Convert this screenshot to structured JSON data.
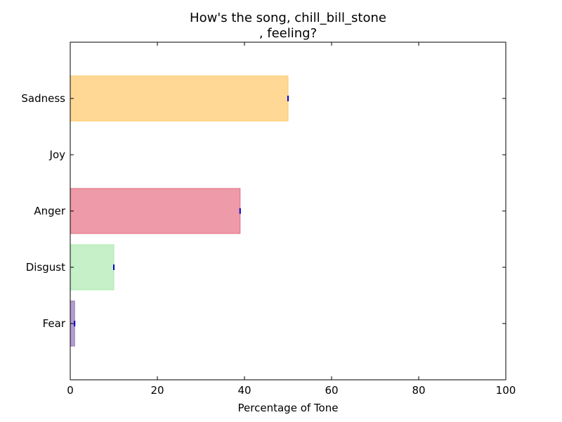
{
  "chart_data": {
    "type": "bar",
    "orientation": "horizontal",
    "title_lines": [
      "How's the song, chill_bill_stone",
      ", feeling?"
    ],
    "xlabel": "Percentage of Tone",
    "ylabel": "",
    "xlim": [
      0,
      100
    ],
    "xticks": [
      0,
      20,
      40,
      60,
      80,
      100
    ],
    "grid": false,
    "categories": [
      "Sadness",
      "Joy",
      "Anger",
      "Disgust",
      "Fear"
    ],
    "values": [
      50,
      0,
      39,
      10,
      1
    ],
    "colors": [
      "#FFD896",
      "#FFF176",
      "#EE9AA8",
      "#C6F0C8",
      "#B39DD0"
    ],
    "edge_colors": [
      "#FFC966",
      "#F5E050",
      "#E06C80",
      "#A6E8A8",
      "#9075B8"
    ],
    "error_marker_color": "#0000CC"
  }
}
